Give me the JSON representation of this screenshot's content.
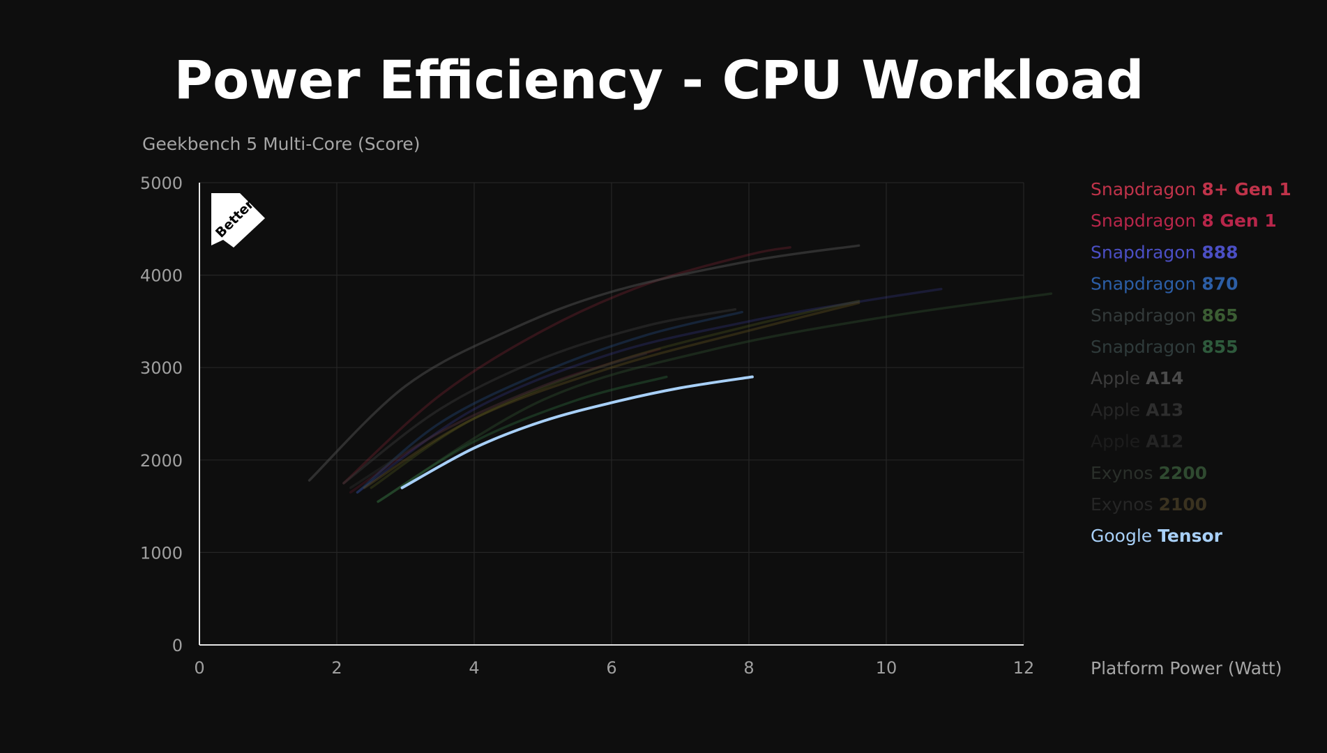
{
  "chart_data": {
    "type": "line",
    "title": "Power Efficiency - CPU Workload",
    "xlabel": "Platform Power (Watt)",
    "ylabel": "Geekbench 5 Multi-Core (Score)",
    "xlim": [
      0,
      12
    ],
    "ylim": [
      0,
      5000
    ],
    "x_ticks": [
      "0",
      "2",
      "4",
      "6",
      "8",
      "10",
      "12"
    ],
    "y_ticks": [
      "0",
      "1000",
      "2000",
      "3000",
      "4000",
      "5000"
    ],
    "grid": true,
    "legend_position": "right",
    "badge": "Better",
    "series": [
      {
        "name_prefix": "Snapdragon",
        "name_suffix": "8+ Gen 1",
        "color": "#c0334a",
        "prefix_color": "#c0334a",
        "suffix_color": "#c0334a",
        "opacity": 0.22,
        "x": [
          2.1,
          3.5,
          5.0,
          6.5,
          8.0,
          8.6
        ],
        "y": [
          1750,
          2700,
          3400,
          3900,
          4220,
          4300
        ]
      },
      {
        "name_prefix": "Snapdragon",
        "name_suffix": "8 Gen 1",
        "color": "#b8264a",
        "prefix_color": "#b8264a",
        "suffix_color": "#b8264a",
        "opacity": 0.16,
        "x": [
          2.2,
          3.5,
          5.0,
          6.0,
          6.7
        ],
        "y": [
          1650,
          2300,
          2800,
          3050,
          3200
        ]
      },
      {
        "name_prefix": "Snapdragon",
        "name_suffix": "888",
        "color": "#4b4fc4",
        "prefix_color": "#4b4fc4",
        "suffix_color": "#4b4fc4",
        "opacity": 0.22,
        "x": [
          2.3,
          4.0,
          6.0,
          8.0,
          9.5,
          10.8
        ],
        "y": [
          1650,
          2550,
          3150,
          3500,
          3700,
          3850
        ]
      },
      {
        "name_prefix": "Snapdragon",
        "name_suffix": "870",
        "color": "#2c5ea6",
        "prefix_color": "#2c5ea6",
        "suffix_color": "#2c5ea6",
        "opacity": 0.28,
        "x": [
          2.3,
          3.5,
          5.0,
          6.5,
          7.9
        ],
        "y": [
          1650,
          2400,
          2950,
          3350,
          3600
        ]
      },
      {
        "name_prefix": "Snapdragon",
        "name_suffix": "865",
        "color": "#5b6420",
        "prefix_color": "#333a3a",
        "suffix_color": "#3b5d33",
        "opacity": 0.3,
        "x": [
          2.5,
          4.0,
          6.0,
          8.0,
          9.6
        ],
        "y": [
          1700,
          2450,
          3050,
          3450,
          3720
        ]
      },
      {
        "name_prefix": "Snapdragon",
        "name_suffix": "855",
        "color": "#2c4a2c",
        "prefix_color": "#2f3b3b",
        "suffix_color": "#2e5a3c",
        "opacity": 0.45,
        "x": [
          2.6,
          5.0,
          7.5,
          10.0,
          12.4
        ],
        "y": [
          1550,
          2650,
          3200,
          3550,
          3800
        ]
      },
      {
        "name_prefix": "Apple",
        "name_suffix": "A14",
        "color": "#4a4a4a",
        "prefix_color": "#3b3b3b",
        "suffix_color": "#4a4a4a",
        "opacity": 0.55,
        "x": [
          1.6,
          3.0,
          4.5,
          6.0,
          8.0,
          9.6
        ],
        "y": [
          1780,
          2800,
          3400,
          3820,
          4150,
          4320
        ]
      },
      {
        "name_prefix": "Apple",
        "name_suffix": "A13",
        "color": "#3a3a3a",
        "prefix_color": "#262626",
        "suffix_color": "#2e2e2e",
        "opacity": 0.45,
        "x": [
          2.1,
          3.5,
          5.0,
          6.5,
          7.8
        ],
        "y": [
          1750,
          2550,
          3100,
          3450,
          3630
        ]
      },
      {
        "name_prefix": "Apple",
        "name_suffix": "A12",
        "color": "#303030",
        "prefix_color": "#1c1c1c",
        "suffix_color": "#242424",
        "opacity": 0.4,
        "x": [
          2.2,
          3.5,
          5.0,
          6.5
        ],
        "y": [
          1700,
          2300,
          2800,
          3150
        ]
      },
      {
        "name_prefix": "Exynos",
        "name_suffix": "2200",
        "color": "#2e6a3c",
        "prefix_color": "#2a2f2a",
        "suffix_color": "#2f4a30",
        "opacity": 0.4,
        "x": [
          2.6,
          4.0,
          5.5,
          6.8
        ],
        "y": [
          1550,
          2200,
          2650,
          2900
        ]
      },
      {
        "name_prefix": "Exynos",
        "name_suffix": "2100",
        "color": "#6a5a20",
        "prefix_color": "#262626",
        "suffix_color": "#3a3220",
        "opacity": 0.35,
        "x": [
          2.4,
          4.0,
          6.0,
          8.0,
          9.6
        ],
        "y": [
          1700,
          2450,
          3000,
          3400,
          3700
        ]
      },
      {
        "name_prefix": "Google",
        "name_suffix": "Tensor",
        "color": "#a8d0f8",
        "prefix_color": "#a8d0f8",
        "suffix_color": "#a8d0f8",
        "opacity": 1.0,
        "highlight": true,
        "x": [
          2.95,
          4.0,
          5.0,
          6.0,
          7.0,
          8.05
        ],
        "y": [
          1700,
          2130,
          2420,
          2620,
          2780,
          2900
        ]
      }
    ]
  }
}
